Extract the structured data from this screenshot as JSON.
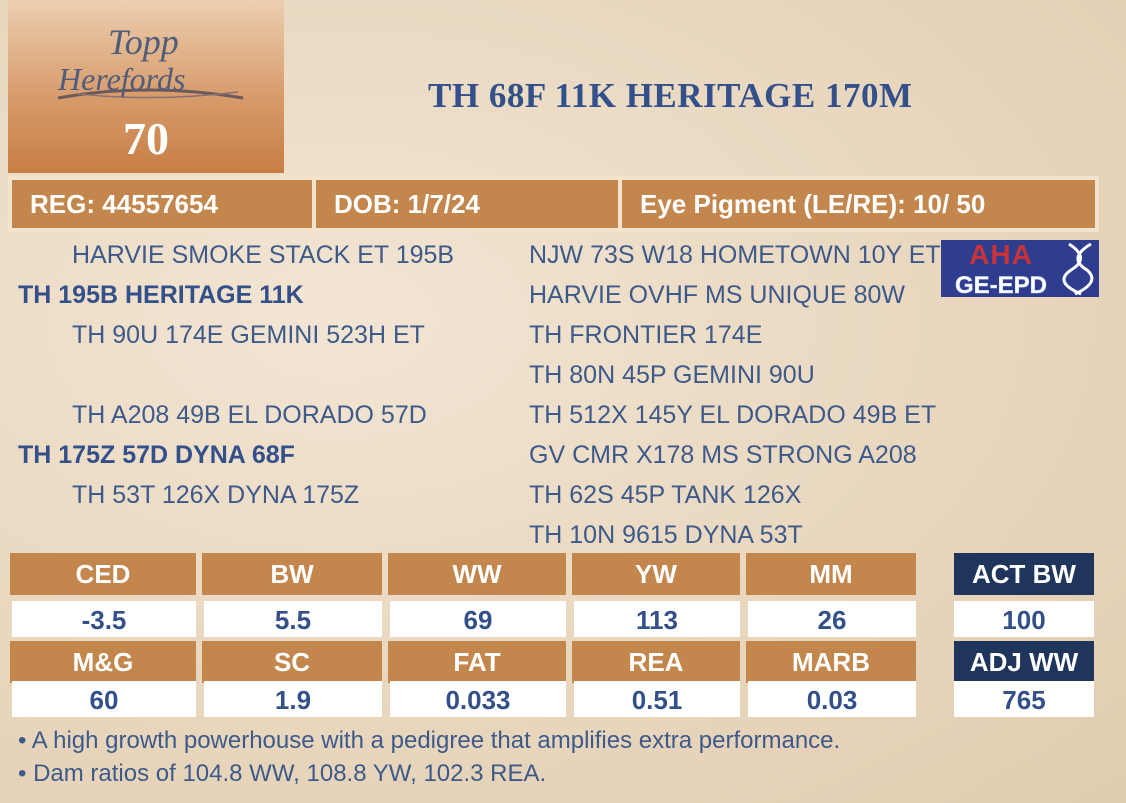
{
  "logo": {
    "text_line1": "Topp",
    "text_line2": "Herefords",
    "lot_number": "70"
  },
  "animal_name": "TH 68F 11K HERITAGE 170M",
  "info": {
    "reg": "REG: 44557654",
    "dob": "DOB: 1/7/24",
    "eye_pigment": "Eye Pigment (LE/RE): 10/ 50"
  },
  "pedigree": {
    "left": [
      "HARVIE SMOKE STACK ET 195B",
      "TH 195B HERITAGE 11K",
      "TH 90U 174E GEMINI 523H ET",
      "TH A208 49B EL DORADO 57D",
      "TH 175Z 57D DYNA 68F",
      "TH 53T 126X DYNA 175Z"
    ],
    "right": [
      "NJW 73S W18 HOMETOWN 10Y ET",
      "HARVIE OVHF MS UNIQUE 80W",
      "TH FRONTIER 174E",
      "TH 80N 45P GEMINI 90U",
      "TH 512X 145Y EL DORADO 49B ET",
      "GV CMR X178 MS STRONG A208",
      "TH 62S 45P TANK 126X",
      "TH 10N 9615 DYNA 53T"
    ]
  },
  "badge": {
    "line1": "AHA",
    "line2": "GE-EPD"
  },
  "epd": {
    "row1_labels": [
      "CED",
      "BW",
      "WW",
      "YW",
      "MM"
    ],
    "row1_values": [
      "-3.5",
      "5.5",
      "69",
      "113",
      "26"
    ],
    "row2_labels": [
      "M&G",
      "SC",
      "FAT",
      "REA",
      "MARB"
    ],
    "row2_values": [
      "60",
      "1.9",
      "0.033",
      "0.51",
      "0.03"
    ],
    "act_bw_label": "ACT BW",
    "act_bw_value": "100",
    "adj_ww_label": "ADJ WW",
    "adj_ww_value": "765"
  },
  "notes": [
    "• A high growth powerhouse with a pedigree that amplifies extra performance.",
    "• Dam ratios of 104.8 WW, 108.8 YW, 102.3 REA."
  ],
  "colors": {
    "accent": "#c3874d",
    "navy": "#1f355c",
    "text": "#34508a",
    "background": "#ecdcc6"
  }
}
